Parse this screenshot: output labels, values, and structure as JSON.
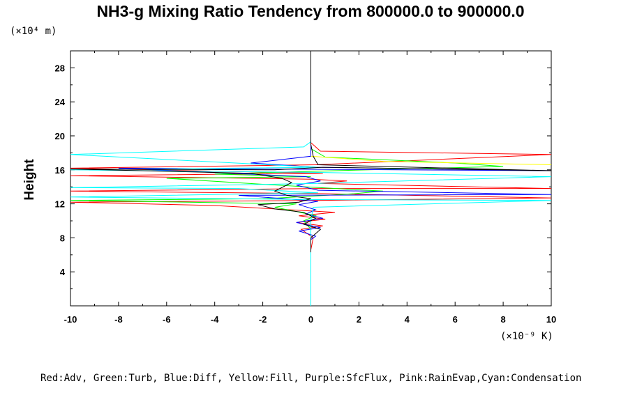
{
  "chart_data": {
    "type": "line",
    "title": "NH3-g Mixing Ratio Tendency from 800000.0 to 900000.0",
    "ylabel": "Height",
    "y_unit": "(×10⁴ m)",
    "x_unit": "(×10⁻⁹ K)",
    "xlim": [
      -10,
      10
    ],
    "ylim": [
      0,
      30
    ],
    "x_ticks": [
      -10,
      -8,
      -6,
      -4,
      -2,
      0,
      2,
      4,
      6,
      8,
      10
    ],
    "y_ticks": [
      4,
      8,
      12,
      16,
      20,
      24,
      28
    ],
    "grid": false,
    "legend_text": "Red:Adv, Green:Turb, Blue:Diff, Yellow:Fill, Purple:SfcFlux, Pink:RainEvap,Cyan:Condensation",
    "series": [
      {
        "name": "Adv",
        "color": "#ff0000",
        "points": [
          [
            0,
            6.6
          ],
          [
            0.1,
            8
          ],
          [
            -0.4,
            9
          ],
          [
            0.5,
            9.4
          ],
          [
            -0.6,
            9.8
          ],
          [
            0.6,
            10.2
          ],
          [
            -0.5,
            10.6
          ],
          [
            1,
            11
          ],
          [
            -1.5,
            11.4
          ],
          [
            -4,
            11.8
          ],
          [
            -10,
            12.2
          ],
          [
            0.2,
            12.4
          ],
          [
            10,
            12.7
          ],
          [
            0.5,
            13.2
          ],
          [
            -10,
            13.5
          ],
          [
            0.3,
            13.8
          ],
          [
            10,
            13.8
          ],
          [
            0.3,
            14.4
          ],
          [
            1.5,
            14.7
          ],
          [
            0,
            14.9
          ],
          [
            -10,
            15.3
          ],
          [
            0.5,
            15.6
          ],
          [
            -10,
            16.2
          ],
          [
            0.2,
            16.6
          ],
          [
            10,
            17.8
          ],
          [
            0.4,
            18.2
          ],
          [
            0,
            19.2
          ],
          [
            0,
            30
          ]
        ]
      },
      {
        "name": "Turb",
        "color": "#00ff00",
        "points": [
          [
            0,
            6.6
          ],
          [
            0,
            9
          ],
          [
            -0.3,
            10
          ],
          [
            0.2,
            10.6
          ],
          [
            -0.6,
            11.1
          ],
          [
            -1.5,
            11.6
          ],
          [
            -0.6,
            12
          ],
          [
            -10,
            12.4
          ],
          [
            -2,
            12.6
          ],
          [
            0,
            12.9
          ],
          [
            1.8,
            13.2
          ],
          [
            3,
            13.5
          ],
          [
            0.4,
            13.9
          ],
          [
            -2,
            14.3
          ],
          [
            -6,
            15
          ],
          [
            0,
            15.2
          ],
          [
            -4,
            15.5
          ],
          [
            1,
            15.9
          ],
          [
            8,
            16.4
          ],
          [
            6,
            16.8
          ],
          [
            0.6,
            17.5
          ],
          [
            0,
            18.5
          ],
          [
            0,
            30
          ]
        ]
      },
      {
        "name": "Diff",
        "color": "#0000ff",
        "points": [
          [
            0,
            6.3
          ],
          [
            0,
            7.8
          ],
          [
            0.2,
            8.2
          ],
          [
            -0.5,
            8.8
          ],
          [
            0.4,
            9.2
          ],
          [
            -0.6,
            9.8
          ],
          [
            0.5,
            10.3
          ],
          [
            -0.2,
            10.8
          ],
          [
            0.2,
            11.3
          ],
          [
            -0.5,
            11.9
          ],
          [
            0.3,
            12.3
          ],
          [
            -3,
            13
          ],
          [
            10,
            13.1
          ],
          [
            0.3,
            13.6
          ],
          [
            -0.6,
            14.2
          ],
          [
            0.4,
            14.7
          ],
          [
            -0.2,
            15.2
          ],
          [
            -8,
            16.2
          ],
          [
            10,
            15.9
          ],
          [
            0.3,
            16.3
          ],
          [
            -2.5,
            16.8
          ],
          [
            0,
            17.6
          ],
          [
            0,
            18.3
          ],
          [
            0,
            30
          ]
        ]
      },
      {
        "name": "Fill",
        "color": "#ffff00",
        "points": [
          [
            0,
            17.6
          ],
          [
            3,
            17
          ],
          [
            10,
            16.6
          ]
        ]
      },
      {
        "name": "Condensation",
        "color": "#00ffff",
        "points": [
          [
            0,
            0
          ],
          [
            0,
            10
          ],
          [
            0.1,
            11.6
          ],
          [
            10,
            12.4
          ],
          [
            0.3,
            12.5
          ],
          [
            -10,
            12.8
          ],
          [
            0.3,
            13.3
          ],
          [
            -3,
            13.8
          ],
          [
            -10,
            13.9
          ],
          [
            0.3,
            14.4
          ],
          [
            10,
            15.2
          ],
          [
            0.3,
            15.7
          ],
          [
            -10,
            16
          ],
          [
            0.3,
            16.3
          ],
          [
            -10,
            17.8
          ],
          [
            -0.3,
            18.7
          ],
          [
            0,
            19.3
          ],
          [
            0,
            30
          ]
        ]
      },
      {
        "name": "",
        "color": "#000000",
        "points": [
          [
            0,
            6.3
          ],
          [
            0,
            8
          ],
          [
            0.4,
            9
          ],
          [
            -0.3,
            9.6
          ],
          [
            0.2,
            10.3
          ],
          [
            -0.3,
            11
          ],
          [
            -1.5,
            11.4
          ],
          [
            -2.2,
            11.9
          ],
          [
            -0.5,
            12.2
          ],
          [
            0,
            12.6
          ],
          [
            -1,
            13
          ],
          [
            -1.5,
            13.5
          ],
          [
            -0.8,
            14.5
          ],
          [
            -1.2,
            15
          ],
          [
            -2.5,
            15.6
          ],
          [
            -10,
            16.1
          ],
          [
            -1.5,
            16
          ],
          [
            0.5,
            16.3
          ],
          [
            10,
            15.9
          ],
          [
            0.3,
            16.6
          ],
          [
            0.1,
            17.6
          ],
          [
            0,
            19
          ],
          [
            0,
            30
          ]
        ]
      }
    ]
  }
}
